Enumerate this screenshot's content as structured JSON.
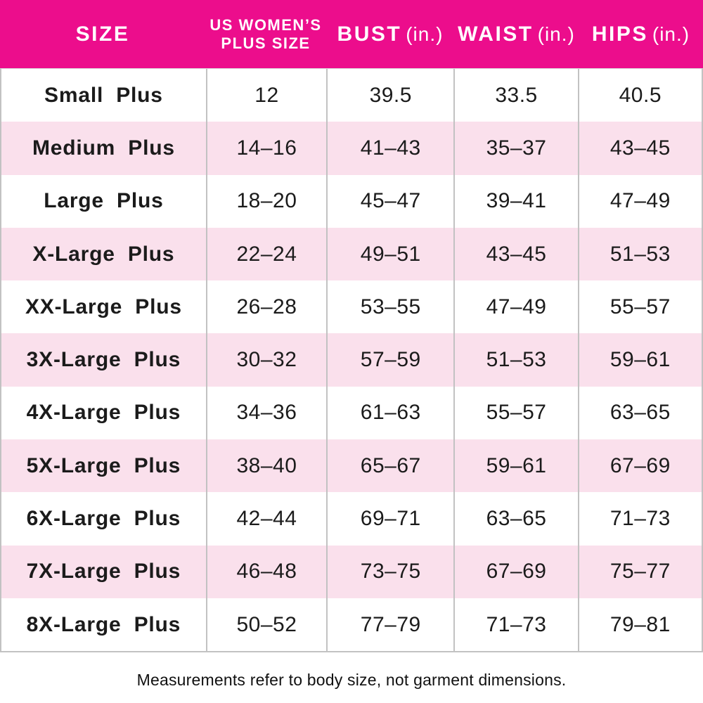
{
  "colors": {
    "header_bg": "#EC0D8C",
    "header_text": "#FFFFFF",
    "row_bg": "#FFFFFF",
    "row_alt_bg": "#FAE0EC",
    "border": "#C2C2C2",
    "text": "#1B1B1B"
  },
  "header": {
    "size_label": "SIZE",
    "plus_size_line1": "US WOMEN’S",
    "plus_size_line2": "PLUS SIZE",
    "bust_label": "BUST",
    "bust_unit": "(in.)",
    "waist_label": "WAIST",
    "waist_unit": "(in.)",
    "hips_label": "HIPS",
    "hips_unit": "(in.)"
  },
  "footer_note": "Measurements refer to body size, not garment dimensions.",
  "chart_data": {
    "type": "table",
    "title": "US Women's Plus Size Measurement Chart",
    "columns": [
      "SIZE",
      "US WOMEN'S PLUS SIZE",
      "BUST (in.)",
      "WAIST (in.)",
      "HIPS (in.)"
    ],
    "rows": [
      [
        "Small Plus",
        "12",
        "39.5",
        "33.5",
        "40.5"
      ],
      [
        "Medium Plus",
        "14–16",
        "41–43",
        "35–37",
        "43–45"
      ],
      [
        "Large Plus",
        "18–20",
        "45–47",
        "39–41",
        "47–49"
      ],
      [
        "X-Large Plus",
        "22–24",
        "49–51",
        "43–45",
        "51–53"
      ],
      [
        "XX-Large Plus",
        "26–28",
        "53–55",
        "47–49",
        "55–57"
      ],
      [
        "3X-Large Plus",
        "30–32",
        "57–59",
        "51–53",
        "59–61"
      ],
      [
        "4X-Large Plus",
        "34–36",
        "61–63",
        "55–57",
        "63–65"
      ],
      [
        "5X-Large Plus",
        "38–40",
        "65–67",
        "59–61",
        "67–69"
      ],
      [
        "6X-Large Plus",
        "42–44",
        "69–71",
        "63–65",
        "71–73"
      ],
      [
        "7X-Large Plus",
        "46–48",
        "73–75",
        "67–69",
        "75–77"
      ],
      [
        "8X-Large Plus",
        "50–52",
        "77–79",
        "71–73",
        "79–81"
      ]
    ],
    "layout": {
      "alternating_row_colors": [
        "#FFFFFF",
        "#FAE0EC"
      ],
      "header_style": "magenta background, white bold uppercase text",
      "column_dividers": true,
      "row_dividers": false
    }
  }
}
